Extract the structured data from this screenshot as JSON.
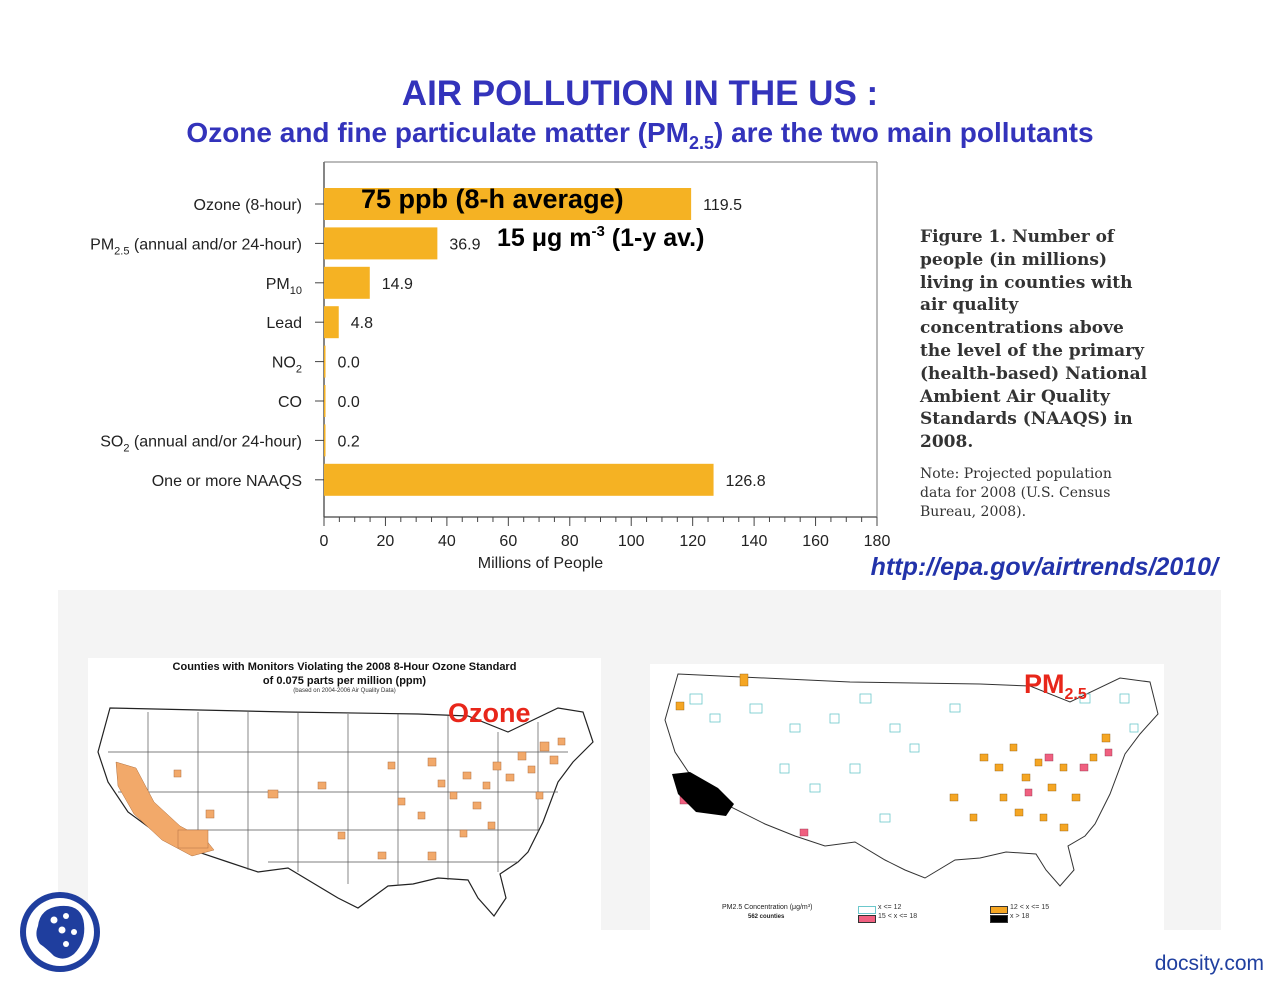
{
  "slide": {
    "title": "AIR POLLUTION IN THE US :",
    "subtitle_pre": "Ozone and fine particulate matter (PM",
    "subtitle_sub": "2.5",
    "subtitle_post": ") are the two main pollutants",
    "annotation_ozone": "75 ppb (8-h average)",
    "annotation_pm_pre": "15 μg m",
    "annotation_pm_sup": "-3",
    "annotation_pm_post": " (1-y av.)",
    "caption": "Figure 1. Number of people (in millions) living in counties with air quality concentrations above the level of the primary (health-based) National Ambient Air Quality Standards (NAAQS) in 2008.",
    "note": "Note:  Projected population data for 2008 (U.S. Census Bureau, 2008).",
    "url": "http://epa.gov/airtrends/2010/",
    "footer": "docsity.com"
  },
  "maps": {
    "ozone": {
      "title_line1": "Counties with Monitors Violating the 2008 8-Hour Ozone Standard",
      "title_line2": "of 0.075 parts per million (ppm)",
      "title_line3": "(based on 2004-2006 Air Quality Data)",
      "label": "Ozone",
      "fill_color": "#f2a96a"
    },
    "pm": {
      "label": "PM",
      "label_sub": "2.5",
      "legend_title": "PM2.5 Concentration (μg/m³)",
      "legend_count": "562 counties",
      "legend_items": [
        "x <= 12",
        "12 < x <= 15",
        "15 < x <= 18",
        "x > 18"
      ],
      "legend_colors": [
        "#6cc8cc",
        "#f5a623",
        "#f06080",
        "#000000"
      ]
    }
  },
  "colors": {
    "bar": "#f5b223",
    "title": "#3333bb",
    "map_label": "#e8261a"
  },
  "chart_data": {
    "type": "bar",
    "orientation": "horizontal",
    "categories": [
      "Ozone (8-hour)",
      "PM2.5 (annual and/or 24-hour)",
      "PM10",
      "Lead",
      "NO2",
      "CO",
      "SO2 (annual and/or 24-hour)",
      "One or more NAAQS"
    ],
    "category_labels": [
      {
        "main": "Ozone (8-hour)",
        "sub": "",
        "rest": ""
      },
      {
        "main": "PM",
        "sub": "2.5",
        "rest": " (annual and/or 24-hour)"
      },
      {
        "main": "PM",
        "sub": "10",
        "rest": ""
      },
      {
        "main": "Lead",
        "sub": "",
        "rest": ""
      },
      {
        "main": "NO",
        "sub": "2",
        "rest": ""
      },
      {
        "main": "CO",
        "sub": "",
        "rest": ""
      },
      {
        "main": "SO",
        "sub": "2",
        "rest": " (annual and/or 24-hour)"
      },
      {
        "main": "One or more NAAQS",
        "sub": "",
        "rest": ""
      }
    ],
    "values": [
      119.5,
      36.9,
      14.9,
      4.8,
      0.0,
      0.0,
      0.2,
      126.8
    ],
    "value_labels": [
      "119.5",
      "36.9",
      "14.9",
      "4.8",
      "0.0",
      "0.0",
      "0.2",
      "126.8"
    ],
    "xlabel": "Millions of People",
    "xlim": [
      0,
      180
    ],
    "xticks": [
      0,
      20,
      40,
      60,
      80,
      100,
      120,
      140,
      160,
      180
    ],
    "grid": false
  }
}
